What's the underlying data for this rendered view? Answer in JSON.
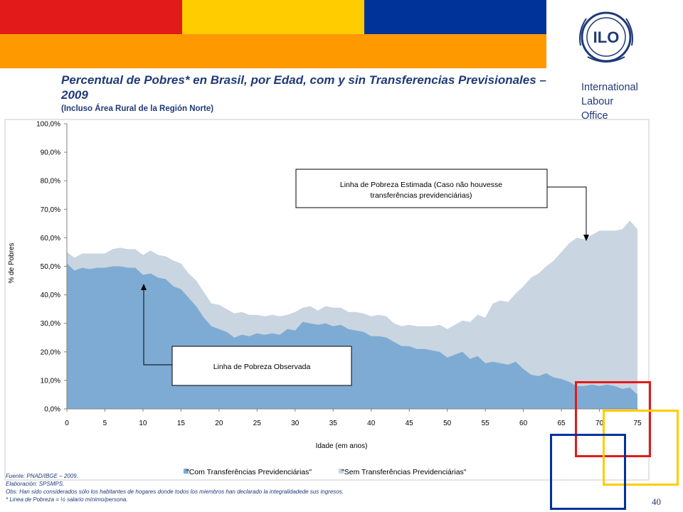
{
  "slide": {
    "title": "Percentual de Pobres* en Brasil, por Edad, com y sin Transferencias Previsionales – 2009",
    "subtitle": "(Incluso Área Rural de la Región Norte)",
    "organization": [
      "International",
      "Labour",
      "Office"
    ],
    "logo_text": "ILO",
    "page_number": "40",
    "footer": [
      "Fuente: PNAD/IBGE – 2009.",
      "Elaboración: SPSMPS.",
      "Obs: Han sido considerados sólo los habitantes de hogares donde todos los miembros han declarado la integralidadede sus ingresos.",
      "* Linea de Pobreza = ½ salario mínimo/persona."
    ],
    "colors": {
      "red": "#e21a1a",
      "yellow": "#ffcc00",
      "blue": "#003399",
      "orange": "#ff9900",
      "text": "#1f3a78"
    }
  },
  "chart_data": {
    "type": "area",
    "xlabel": "Idade (em anos)",
    "ylabel": "% de Pobres",
    "xlim": [
      0,
      75
    ],
    "ylim": [
      0,
      100
    ],
    "x_ticks": [
      "0",
      "5",
      "10",
      "15",
      "20",
      "25",
      "30",
      "35",
      "40",
      "45",
      "50",
      "55",
      "60",
      "65",
      "70",
      "75"
    ],
    "y_ticks": [
      "0,0%",
      "10,0%",
      "20,0%",
      "30,0%",
      "40,0%",
      "50,0%",
      "60,0%",
      "70,0%",
      "80,0%",
      "90,0%",
      "100,0%"
    ],
    "x": [
      0,
      1,
      2,
      3,
      4,
      5,
      6,
      7,
      8,
      9,
      10,
      11,
      12,
      13,
      14,
      15,
      16,
      17,
      18,
      19,
      20,
      21,
      22,
      23,
      24,
      25,
      26,
      27,
      28,
      29,
      30,
      31,
      32,
      33,
      34,
      35,
      36,
      37,
      38,
      39,
      40,
      41,
      42,
      43,
      44,
      45,
      46,
      47,
      48,
      49,
      50,
      51,
      52,
      53,
      54,
      55,
      56,
      57,
      58,
      59,
      60,
      61,
      62,
      63,
      64,
      65,
      66,
      67,
      68,
      69,
      70,
      71,
      72,
      73,
      74,
      75
    ],
    "series": [
      {
        "name": "\"Com Transferências Previdenciárias\"",
        "color": "#7eabd3",
        "values": [
          51,
          48.5,
          49.5,
          49,
          49.5,
          49.5,
          50,
          50,
          49.5,
          49.5,
          47,
          47.5,
          46,
          45.5,
          43,
          42,
          39,
          36,
          32,
          29,
          28,
          27,
          25,
          26,
          25.5,
          26.5,
          26,
          26.5,
          26,
          28,
          27.5,
          30.5,
          30,
          29.5,
          30,
          29,
          29.5,
          28,
          27.5,
          27,
          25.5,
          25.5,
          25,
          23.5,
          22,
          22,
          21,
          21,
          20.5,
          20,
          18,
          19,
          20,
          17.5,
          18.5,
          16,
          16.5,
          16,
          15.5,
          16.5,
          14,
          12,
          11.5,
          12.5,
          11,
          10.5,
          9.5,
          8,
          8,
          8.5,
          8,
          8.5,
          8,
          7,
          7.5,
          5
        ]
      },
      {
        "name": "\"Sem Transferências Previdenciárias\"",
        "color": "#c9d5e0",
        "values": [
          55,
          53,
          54.5,
          54.5,
          54.5,
          54.5,
          56,
          56.5,
          56,
          56,
          54,
          55.5,
          54,
          53.5,
          52,
          51,
          47.5,
          45,
          41,
          37,
          36.5,
          35,
          33.5,
          34,
          33,
          33,
          32.5,
          33,
          32.5,
          33,
          34,
          35.5,
          36,
          34.5,
          36,
          35.5,
          35.5,
          34,
          34,
          33.5,
          32.5,
          33,
          32.5,
          30,
          29,
          29.5,
          29,
          29,
          29,
          29.5,
          28,
          29.5,
          31,
          30.5,
          33,
          32,
          37,
          38,
          37.5,
          40.5,
          43,
          46,
          47.5,
          50,
          52,
          55,
          58,
          60,
          59.5,
          61,
          62.5,
          62.5,
          62.5,
          63,
          66,
          63
        ]
      }
    ],
    "annotations": [
      "Linha de Pobreza Estimada (Caso não houvesse transferências previdenciárias)",
      "Linha de Pobreza Observada"
    ],
    "legend": "bottom",
    "grid": false
  }
}
